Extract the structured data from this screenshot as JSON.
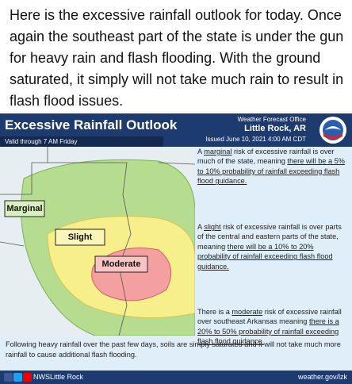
{
  "post": {
    "text": "Here is the excessive rainfall outlook for today. Once again the southeast part of the state is under the gun for heavy rain and flash flooding. With the ground saturated, it simply will not take much rain to result in flash flood issues."
  },
  "graphic": {
    "title": "Excessive Rainfall Outlook",
    "valid": "Valid through 7 AM Friday",
    "office_label": "Weather Forecast Office",
    "office_name": "Little Rock, AR",
    "issued": "Issued June 10, 2021 4:00 AM CDT",
    "map_labels": [
      "Marginal",
      "Slight",
      "Moderate"
    ],
    "paragraphs": [
      [
        {
          "text": "A "
        },
        {
          "text": "marginal",
          "underlined": true
        },
        {
          "text": " risk of excessive rainfall is over much of the state, meaning "
        },
        {
          "text": "there will be a 5% to 10% probability of rainfall exceeding flash flood guidance.",
          "underlined": true
        }
      ],
      [
        {
          "text": "A "
        },
        {
          "text": "slight",
          "underlined": true
        },
        {
          "text": " risk of excessive rainfall is over parts of the central and eastern parts of the state, meaning "
        },
        {
          "text": "there will be a 10% to 20% probability of rainfall exceeding flash flood guidance.",
          "underlined": true
        }
      ],
      [
        {
          "text": "There is a "
        },
        {
          "text": "moderate",
          "underlined": true
        },
        {
          "text": " risk of excessive rainfall over southeast Arkansas meaning "
        },
        {
          "text": "there is a 20% to 50% probability of rainfall exceeding flash flood guidance.",
          "underlined": true
        }
      ]
    ],
    "note": "Following heavy rainfall over the past few days, soils are simply saturated and it will not take much more rainfall to cause additional flash flooding.",
    "social": "NWSLittle Rock",
    "website": "weather.gov/lzk"
  }
}
